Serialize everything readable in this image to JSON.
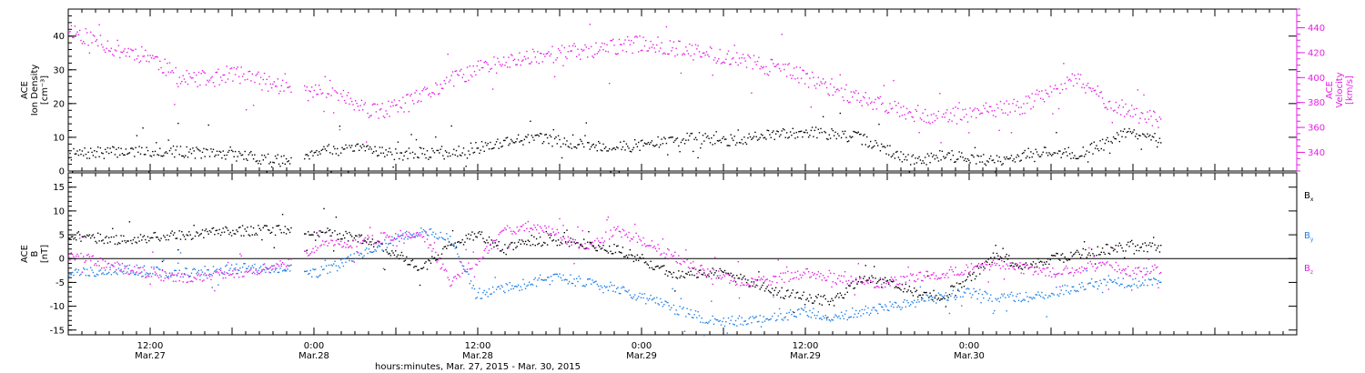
{
  "chart_data": [
    {
      "type": "scatter",
      "panel": "top",
      "ylabel_left": [
        "ACE",
        "Ion Density",
        "[cm⁻³]"
      ],
      "ylabel_right": [
        "ACE",
        "Velocity",
        "[km/s]"
      ],
      "left_yticks": [
        0,
        10,
        20,
        30,
        40
      ],
      "left_ylim": [
        0,
        48
      ],
      "right_yticks": [
        340,
        360,
        380,
        400,
        420,
        440
      ],
      "right_ylim": [
        325,
        455
      ],
      "colors": {
        "density": "#000000",
        "velocity": "#e61ee6"
      },
      "series": [
        {
          "name": "density",
          "axis": "left",
          "x": [
            0,
            4,
            8,
            12,
            16,
            18,
            19,
            20,
            22,
            24,
            28,
            30,
            32,
            34,
            36,
            38,
            40,
            42,
            44,
            46,
            48,
            50,
            52,
            54,
            56,
            58,
            60,
            62,
            64,
            66,
            68,
            70,
            72,
            74,
            76,
            78,
            80
          ],
          "y": [
            5,
            6,
            6,
            5,
            3,
            6,
            7,
            6,
            7,
            5,
            6,
            7,
            9,
            10,
            9,
            8,
            7,
            8,
            9,
            10,
            9,
            10,
            11,
            12,
            11,
            10,
            6,
            3,
            5,
            4,
            3,
            5,
            6,
            5,
            9,
            12,
            8
          ]
        },
        {
          "name": "velocity",
          "axis": "right",
          "x": [
            0,
            2,
            4,
            6,
            8,
            10,
            12,
            14,
            16,
            18,
            19,
            20,
            22,
            24,
            26,
            28,
            30,
            32,
            34,
            36,
            38,
            40,
            42,
            44,
            46,
            48,
            50,
            52,
            54,
            56,
            58,
            60,
            62,
            64,
            66,
            68,
            70,
            72,
            74,
            76,
            78,
            80
          ],
          "y": [
            440,
            430,
            422,
            418,
            400,
            398,
            404,
            398,
            392,
            388,
            392,
            386,
            372,
            376,
            386,
            398,
            408,
            412,
            418,
            420,
            422,
            425,
            428,
            425,
            420,
            418,
            412,
            408,
            400,
            392,
            384,
            378,
            372,
            368,
            372,
            374,
            378,
            392,
            398,
            382,
            372,
            365
          ]
        }
      ]
    },
    {
      "type": "scatter",
      "panel": "bottom",
      "ylabel_left": [
        "ACE",
        "B",
        "[nT]"
      ],
      "left_yticks": [
        -15,
        -10,
        -5,
        0,
        5,
        10,
        15
      ],
      "left_ylim": [
        -16,
        18
      ],
      "legend": [
        {
          "label": "B",
          "sub": "x",
          "color": "#000000"
        },
        {
          "label": "B",
          "sub": "y",
          "color": "#1e7fe6"
        },
        {
          "label": "B",
          "sub": "z",
          "color": "#e61ee6"
        }
      ],
      "series": [
        {
          "name": "Bx",
          "x": [
            0,
            4,
            8,
            12,
            16,
            18,
            19,
            20,
            22,
            24,
            26,
            28,
            30,
            32,
            34,
            36,
            38,
            40,
            42,
            44,
            46,
            48,
            50,
            52,
            54,
            56,
            58,
            60,
            62,
            64,
            66,
            68,
            70,
            72,
            74,
            76,
            78,
            80
          ],
          "y": [
            5,
            4,
            5,
            6,
            6,
            5,
            6,
            5,
            4,
            1,
            -2,
            3,
            5,
            2,
            4,
            4,
            3,
            2,
            0,
            -3,
            -3,
            -3,
            -5,
            -7,
            -8,
            -9,
            -4,
            -5,
            -7,
            -8,
            -4,
            1,
            -2,
            0,
            1,
            2,
            3,
            2
          ]
        },
        {
          "name": "By",
          "x": [
            0,
            4,
            8,
            12,
            16,
            18,
            19,
            20,
            22,
            24,
            26,
            28,
            30,
            32,
            34,
            36,
            38,
            40,
            42,
            44,
            46,
            48,
            50,
            52,
            54,
            56,
            58,
            60,
            62,
            64,
            66,
            68,
            70,
            72,
            74,
            76,
            78,
            80
          ],
          "y": [
            -3,
            -2,
            -3,
            -2,
            -2,
            -3,
            -2,
            -1,
            2,
            4,
            6,
            4,
            -8,
            -6,
            -5,
            -4,
            -5,
            -6,
            -8,
            -10,
            -12,
            -13,
            -13,
            -12,
            -11,
            -12,
            -11,
            -10,
            -9,
            -8,
            -7,
            -8,
            -8,
            -7,
            -6,
            -5,
            -5,
            -5
          ]
        },
        {
          "name": "Bz",
          "x": [
            0,
            4,
            8,
            12,
            16,
            18,
            19,
            20,
            22,
            24,
            26,
            28,
            30,
            32,
            34,
            36,
            38,
            40,
            42,
            44,
            46,
            48,
            50,
            52,
            54,
            56,
            58,
            60,
            62,
            64,
            66,
            68,
            70,
            72,
            74,
            76,
            78,
            80
          ],
          "y": [
            1,
            -2,
            -4,
            -3,
            -1,
            2,
            4,
            3,
            4,
            5,
            5,
            -5,
            0,
            6,
            7,
            5,
            2,
            6,
            4,
            1,
            -2,
            -4,
            -5,
            -4,
            -3,
            -4,
            -5,
            -5,
            -4,
            -3,
            -2,
            -1,
            -2,
            -3,
            -2,
            -1,
            -3,
            -2
          ]
        }
      ]
    }
  ],
  "x_axis": {
    "range_hours": [
      0,
      90
    ],
    "ticks": [
      {
        "hour": 6,
        "time": "12:00",
        "date": "Mar.27"
      },
      {
        "hour": 18,
        "time": "0:00",
        "date": "Mar.28"
      },
      {
        "hour": 30,
        "time": "12:00",
        "date": "Mar.28"
      },
      {
        "hour": 42,
        "time": "0:00",
        "date": "Mar.29"
      },
      {
        "hour": 54,
        "time": "12:00",
        "date": "Mar.29"
      },
      {
        "hour": 66,
        "time": "0:00",
        "date": "Mar.30"
      }
    ],
    "label": "hours:minutes, Mar. 27, 2015 - Mar. 30, 2015"
  }
}
